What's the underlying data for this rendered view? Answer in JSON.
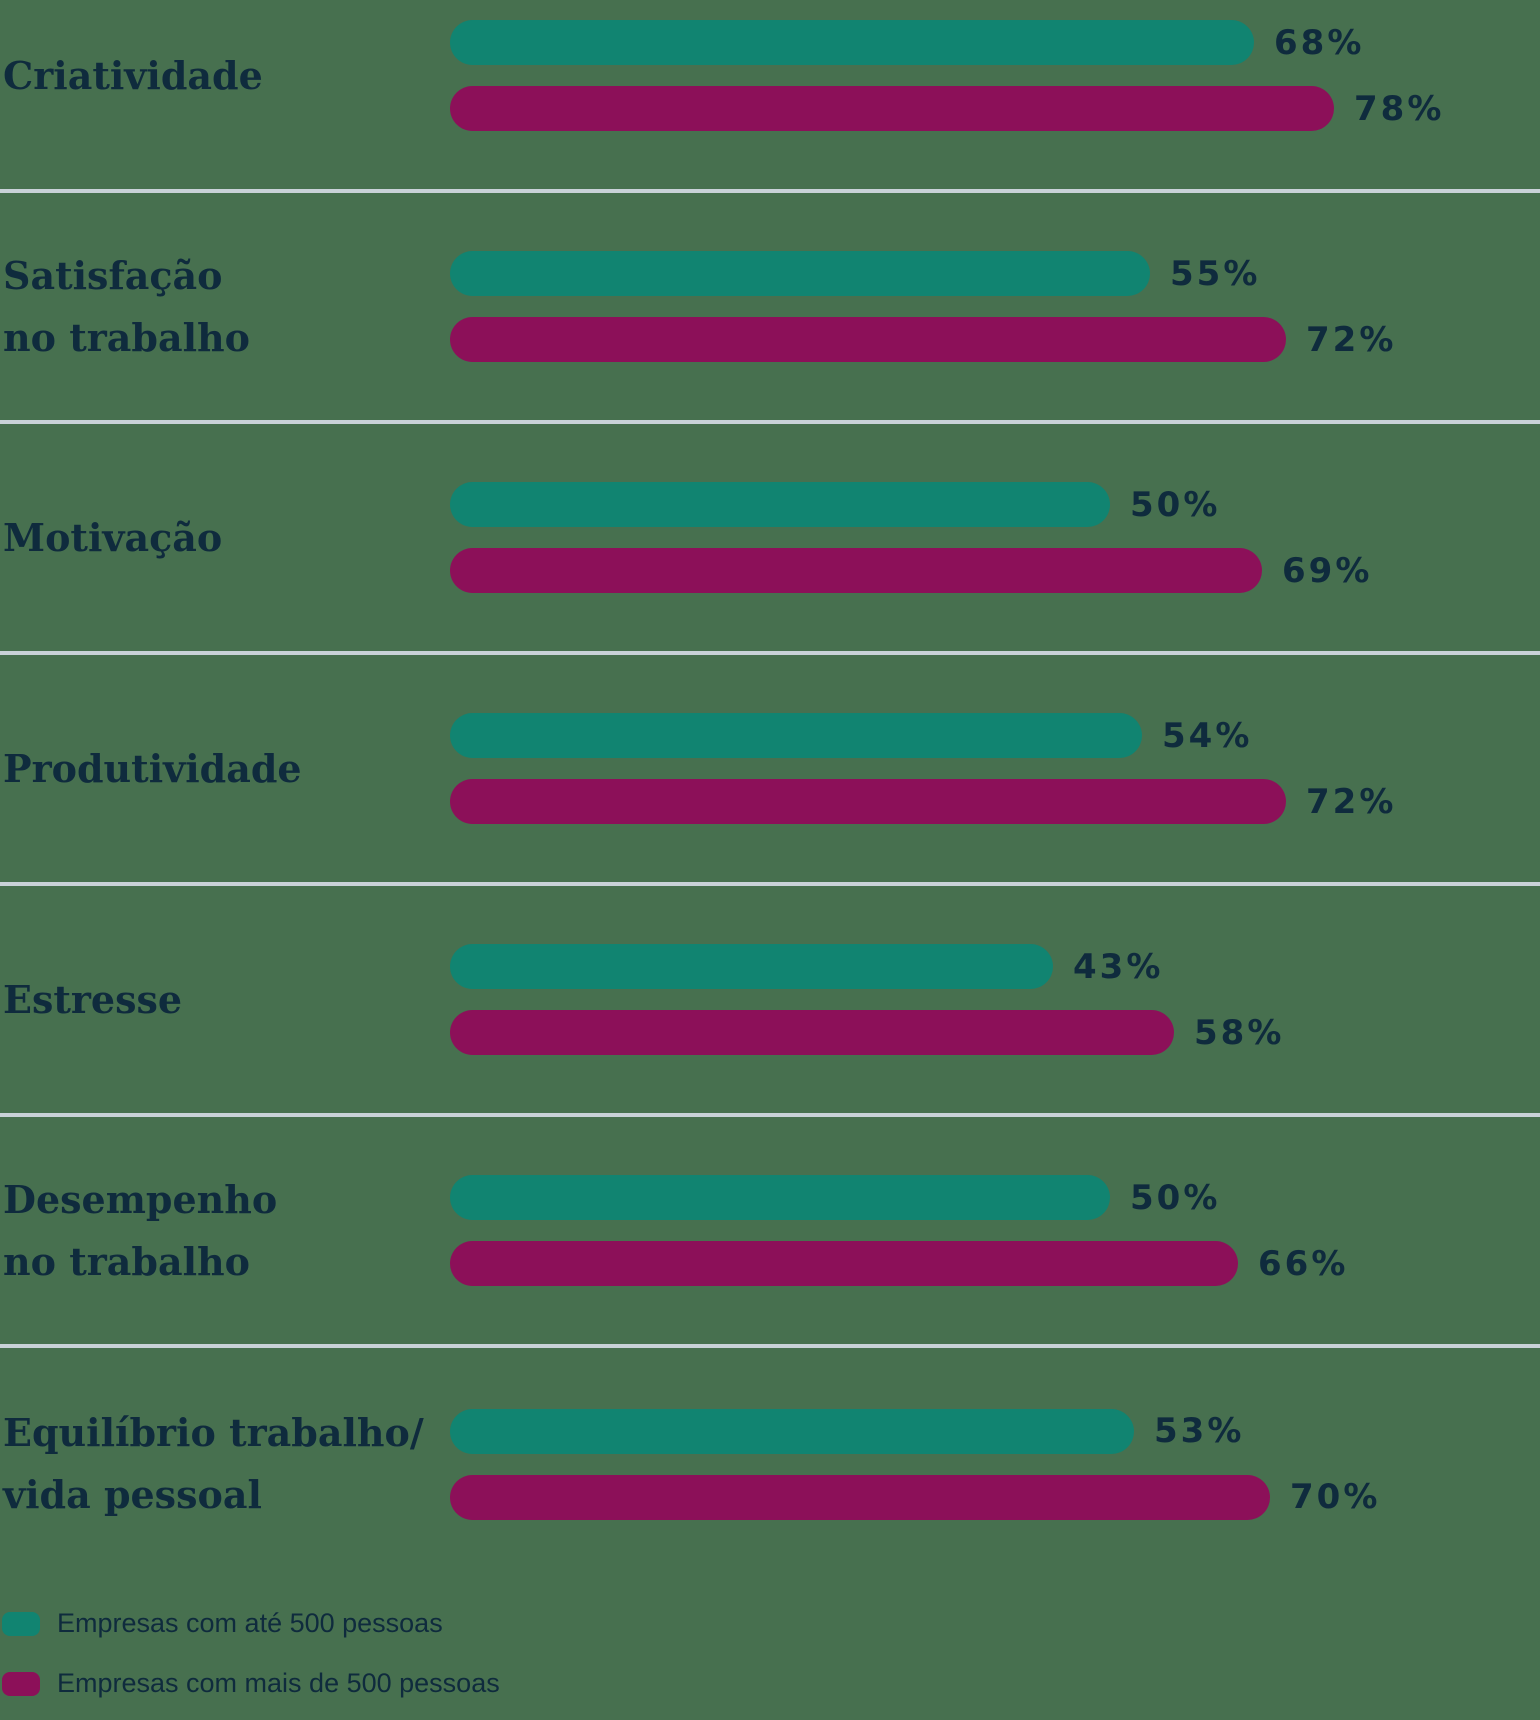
{
  "chart_data": {
    "type": "bar",
    "orientation": "horizontal",
    "value_suffix": "%",
    "legend_position": "bottom-left",
    "grid": "horizontal-row-separators",
    "categories": [
      "Criatividade",
      "Satisfação\nno trabalho",
      "Motivação",
      "Produtividade",
      "Estresse",
      "Desempenho\nno trabalho",
      "Equilíbrio trabalho/\nvida pessoal"
    ],
    "series": [
      {
        "name": "Empresas com até 500 pessoas",
        "color": "#118471",
        "values": [
          68,
          55,
          50,
          54,
          43,
          50,
          53
        ]
      },
      {
        "name": "Empresas com mais de 500 pessoas",
        "color": "#8C1059",
        "values": [
          78,
          72,
          69,
          72,
          58,
          66,
          70
        ]
      }
    ]
  },
  "colors": {
    "background": "#47704F",
    "text": "#0F2B3D",
    "separator": "#C9D2D8"
  }
}
